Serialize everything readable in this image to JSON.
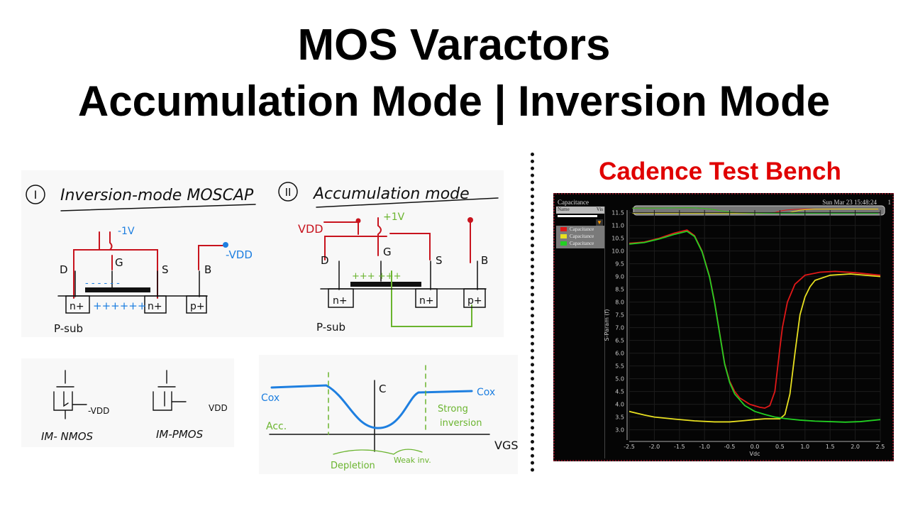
{
  "title": {
    "line1": "MOS Varactors",
    "line2": "Accumulation Mode | Inversion Mode"
  },
  "inversion_panel": {
    "number": "I",
    "heading": "Inversion-mode MOSCAP",
    "gate_voltage": "-1V",
    "bulk_voltage": "-VDD",
    "terminals": {
      "d": "D",
      "g": "G",
      "s": "S",
      "b": "B"
    },
    "regions": {
      "left": "n+",
      "right": "n+",
      "body": "p+"
    },
    "charge_gate": "- - - - - -",
    "charge_channel": "++++++",
    "substrate": "P-sub"
  },
  "accumulation_panel": {
    "number": "II",
    "heading": "Accumulation mode",
    "vdd": "VDD",
    "gate_voltage": "+1V",
    "terminals": {
      "d": "D",
      "g": "G",
      "s": "S",
      "b": "B"
    },
    "regions": {
      "left": "n+",
      "right": "n+",
      "body": "p+"
    },
    "charge_gate": "+++ +++",
    "substrate": "P-sub"
  },
  "symbols_panel": {
    "nmos_voltage": "-VDD",
    "nmos_label": "IM- NMOS",
    "pmos_voltage": "VDD",
    "pmos_label": "IM-PMOS"
  },
  "cv_sketch": {
    "y_axis": "C",
    "x_axis": "VGS",
    "left_level": "Cox",
    "right_level": "Cox",
    "regions": {
      "acc": "Acc.",
      "depletion": "Depletion",
      "weak": "Weak inv.",
      "strong_1": "Strong",
      "strong_2": "inversion"
    },
    "curve_color": "#1e7fe0",
    "annotation_color": "#6ab42e"
  },
  "cadence": {
    "heading": "Cadence Test Bench",
    "window_title": "Capacitance",
    "timestamp": "Sun Mar 23 15:48:24",
    "corner_label": "1",
    "legend_header": {
      "name": "Name",
      "vis": "Vis"
    },
    "legend": [
      {
        "label": "Capacitance",
        "color": "#e01818"
      },
      {
        "label": "Capacitance",
        "color": "#e8e020"
      },
      {
        "label": "Capacitance",
        "color": "#22d022"
      }
    ]
  },
  "chart_data": {
    "type": "line",
    "xlabel": "Vdc",
    "ylabel": "S-Param (f)",
    "xlim": [
      -2.5,
      2.5
    ],
    "ylim": [
      2.6,
      11.6
    ],
    "xticks": [
      -2.5,
      -2.0,
      -1.5,
      -1.0,
      -0.5,
      0.0,
      0.5,
      1.0,
      1.5,
      2.0,
      2.5
    ],
    "yticks": [
      3.0,
      3.5,
      4.0,
      4.5,
      5.0,
      5.5,
      6.0,
      6.5,
      7.0,
      7.5,
      8.0,
      8.5,
      9.0,
      9.5,
      10.0,
      10.5,
      11.0,
      11.5
    ],
    "grid": true,
    "legend_placement": "left-panel",
    "series": [
      {
        "name": "Capacitance",
        "color": "#e01818",
        "x": [
          -2.5,
          -2.2,
          -1.9,
          -1.6,
          -1.35,
          -1.2,
          -1.05,
          -0.9,
          -0.8,
          -0.7,
          -0.6,
          -0.5,
          -0.4,
          -0.3,
          -0.1,
          0.1,
          0.2,
          0.3,
          0.4,
          0.5,
          0.55,
          0.65,
          0.8,
          1.0,
          1.3,
          1.6,
          2.0,
          2.5
        ],
        "y": [
          10.3,
          10.35,
          10.5,
          10.7,
          10.82,
          10.6,
          10.0,
          9.0,
          8.0,
          6.8,
          5.6,
          4.9,
          4.5,
          4.25,
          4.0,
          3.88,
          3.85,
          3.95,
          4.5,
          6.2,
          7.0,
          8.0,
          8.7,
          9.05,
          9.17,
          9.2,
          9.15,
          9.05
        ]
      },
      {
        "name": "Capacitance",
        "color": "#e8e020",
        "x": [
          -2.5,
          -2.2,
          -2.0,
          -1.6,
          -1.2,
          -0.8,
          -0.5,
          -0.2,
          0.0,
          0.2,
          0.5,
          0.6,
          0.7,
          0.8,
          0.9,
          1.0,
          1.1,
          1.2,
          1.5,
          1.9,
          2.5
        ],
        "y": [
          3.72,
          3.58,
          3.5,
          3.42,
          3.35,
          3.31,
          3.31,
          3.36,
          3.4,
          3.43,
          3.43,
          3.6,
          4.4,
          6.0,
          7.5,
          8.2,
          8.6,
          8.85,
          9.05,
          9.1,
          9.0
        ],
        "note": ""
      },
      {
        "name": "Capacitance",
        "color": "#22d022",
        "x": [
          -2.5,
          -2.2,
          -1.9,
          -1.6,
          -1.35,
          -1.2,
          -1.05,
          -0.9,
          -0.8,
          -0.7,
          -0.6,
          -0.5,
          -0.4,
          -0.2,
          0.0,
          0.2,
          0.4,
          0.6,
          0.9,
          1.2,
          1.5,
          1.8,
          2.1,
          2.5
        ],
        "y": [
          10.27,
          10.33,
          10.47,
          10.65,
          10.77,
          10.57,
          9.97,
          8.97,
          7.97,
          6.77,
          5.57,
          4.85,
          4.4,
          3.95,
          3.72,
          3.6,
          3.5,
          3.44,
          3.38,
          3.34,
          3.32,
          3.3,
          3.32,
          3.4
        ]
      }
    ]
  }
}
